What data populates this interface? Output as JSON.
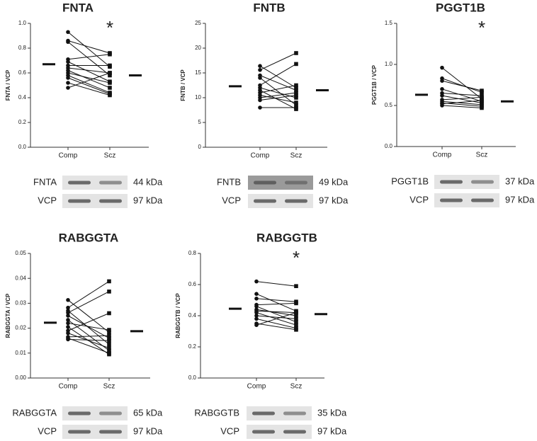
{
  "chart_data": [
    {
      "type": "paired",
      "title": "FNTA",
      "y_label": "FNTA / VCP",
      "categories": [
        "Comp",
        "Scz"
      ],
      "pairs": [
        [
          0.93,
          0.65
        ],
        [
          0.86,
          0.76
        ],
        [
          0.85,
          0.58
        ],
        [
          0.71,
          0.75
        ],
        [
          0.69,
          0.53
        ],
        [
          0.66,
          0.66
        ],
        [
          0.64,
          0.6
        ],
        [
          0.62,
          0.48
        ],
        [
          0.6,
          0.52
        ],
        [
          0.58,
          0.44
        ],
        [
          0.56,
          0.43
        ],
        [
          0.52,
          0.42
        ],
        [
          0.48,
          0.6
        ]
      ],
      "means": [
        0.67,
        0.58
      ],
      "annotation": "*",
      "ylim": [
        0,
        1
      ],
      "yticks": [
        {
          "value": 0,
          "label": "0.0"
        },
        0.2,
        0.4,
        0.6,
        0.8,
        {
          "value": 1,
          "label": "1.0"
        }
      ],
      "blots": [
        {
          "protein": "FNTA",
          "size": "44 kDa"
        },
        {
          "protein": "VCP",
          "size": "97 kDa"
        }
      ]
    },
    {
      "type": "paired",
      "title": "FNTB",
      "y_label": "FNTB / VCP",
      "categories": [
        "Comp",
        "Scz"
      ],
      "pairs": [
        [
          16.4,
          12.0
        ],
        [
          15.6,
          19.0
        ],
        [
          14.5,
          11.5
        ],
        [
          14.0,
          8.5
        ],
        [
          12.5,
          16.8
        ],
        [
          12.0,
          10.0
        ],
        [
          11.0,
          12.5
        ],
        [
          10.5,
          9.0
        ],
        [
          10.0,
          11.0
        ],
        [
          9.5,
          10.5
        ],
        [
          8.0,
          8.0
        ],
        [
          11.5,
          7.7
        ]
      ],
      "means": [
        12.3,
        11.5
      ],
      "ylim": [
        0,
        25
      ],
      "yticks": [
        0,
        5,
        10,
        15,
        20,
        25
      ],
      "blots": [
        {
          "protein": "FNTB",
          "size": "49 kDa"
        },
        {
          "protein": "VCP",
          "size": "97 kDa"
        }
      ]
    },
    {
      "type": "paired",
      "title": "PGGT1B",
      "y_label": "PGGT1B / VCP",
      "categories": [
        "Comp",
        "Scz"
      ],
      "pairs": [
        [
          0.96,
          0.58
        ],
        [
          0.83,
          0.66
        ],
        [
          0.8,
          0.68
        ],
        [
          0.7,
          0.55
        ],
        [
          0.65,
          0.62
        ],
        [
          0.62,
          0.53
        ],
        [
          0.57,
          0.6
        ],
        [
          0.55,
          0.51
        ],
        [
          0.53,
          0.49
        ],
        [
          0.52,
          0.56
        ],
        [
          0.5,
          0.47
        ]
      ],
      "means": [
        0.63,
        0.55
      ],
      "annotation": "*",
      "ylim": [
        0,
        1.5
      ],
      "yticks": [
        {
          "value": 0,
          "label": "0.0"
        },
        0.5,
        {
          "value": 1,
          "label": "1.0"
        },
        1.5
      ],
      "blots": [
        {
          "protein": "PGGT1B",
          "size": "37 kDa"
        },
        {
          "protein": "VCP",
          "size": "97 kDa"
        }
      ]
    },
    {
      "type": "paired",
      "title": "RABGGTA",
      "y_label": "RABGGTA / VCP",
      "categories": [
        "Comp",
        "Scz"
      ],
      "pairs": [
        [
          0.0313,
          0.0183
        ],
        [
          0.0282,
          0.0388
        ],
        [
          0.027,
          0.0135
        ],
        [
          0.0262,
          0.0347
        ],
        [
          0.025,
          0.016
        ],
        [
          0.0233,
          0.011
        ],
        [
          0.022,
          0.0193
        ],
        [
          0.0205,
          0.0095
        ],
        [
          0.019,
          0.026
        ],
        [
          0.018,
          0.012
        ],
        [
          0.0165,
          0.017
        ],
        [
          0.016,
          0.01
        ],
        [
          0.0155,
          0.015
        ]
      ],
      "means": [
        0.0222,
        0.0188
      ],
      "ylim": [
        0,
        0.05
      ],
      "yticks": [
        {
          "value": 0,
          "label": "0.00"
        },
        0.01,
        0.02,
        0.03,
        0.04,
        0.05
      ],
      "blots": [
        {
          "protein": "RABGGTA",
          "size": "65 kDa"
        },
        {
          "protein": "VCP",
          "size": "97 kDa"
        }
      ]
    },
    {
      "type": "paired",
      "title": "RABGGTB",
      "y_label": "RABGGTB / VCP",
      "categories": [
        "Comp",
        "Scz"
      ],
      "pairs": [
        [
          0.62,
          0.59
        ],
        [
          0.54,
          0.43
        ],
        [
          0.51,
          0.49
        ],
        [
          0.47,
          0.48
        ],
        [
          0.46,
          0.36
        ],
        [
          0.44,
          0.4
        ],
        [
          0.43,
          0.42
        ],
        [
          0.42,
          0.34
        ],
        [
          0.4,
          0.38
        ],
        [
          0.38,
          0.32
        ],
        [
          0.35,
          0.31
        ],
        [
          0.34,
          0.42
        ]
      ],
      "means": [
        0.445,
        0.41
      ],
      "annotation": "*",
      "ylim": [
        0,
        0.8
      ],
      "yticks": [
        {
          "value": 0,
          "label": "0.0"
        },
        0.2,
        0.4,
        0.6,
        0.8
      ],
      "blots": [
        {
          "protein": "RABGGTB",
          "size": "35 kDa"
        },
        {
          "protein": "VCP",
          "size": "97 kDa"
        }
      ]
    }
  ]
}
